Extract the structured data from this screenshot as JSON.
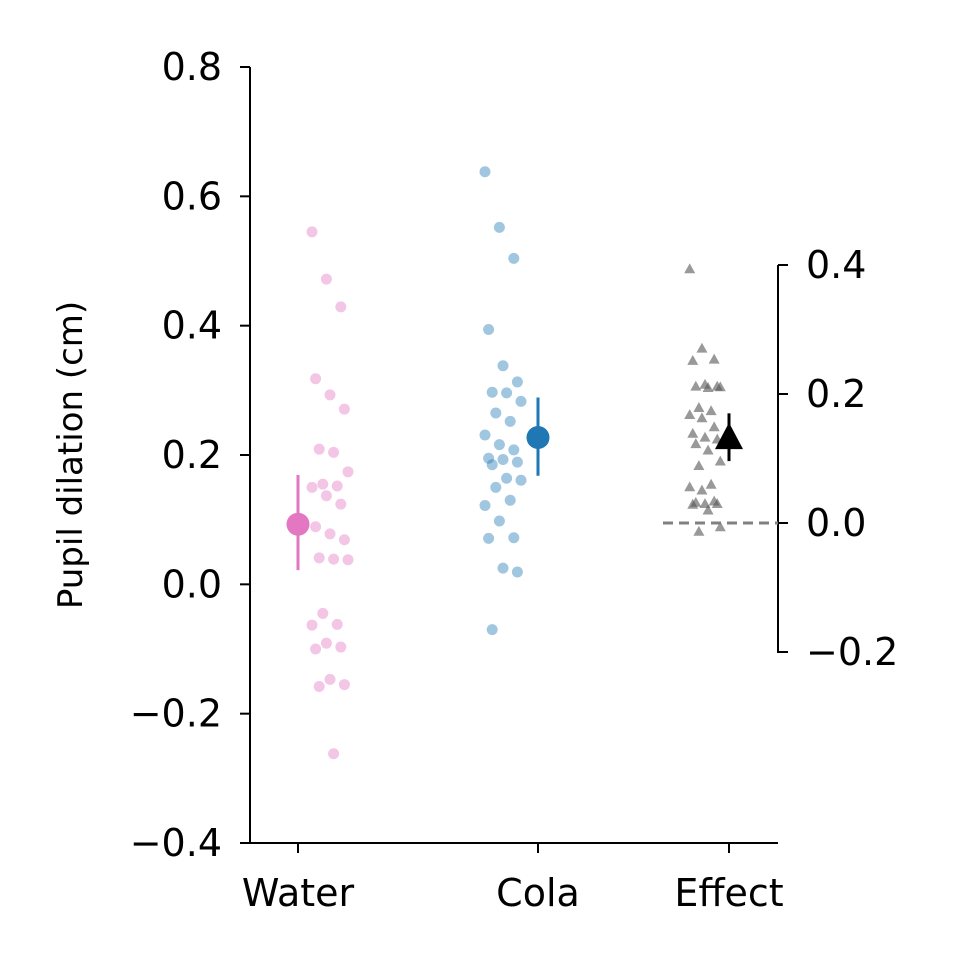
{
  "chart_data": {
    "type": "scatter",
    "ylabel": "Pupil dilation (cm)",
    "ylim": [
      -0.4,
      0.8
    ],
    "yticks": [
      -0.4,
      -0.2,
      0.0,
      0.2,
      0.4,
      0.6,
      0.8
    ],
    "ytick_labels": [
      "−0.4",
      "−0.2",
      "0.0",
      "0.2",
      "0.4",
      "0.6",
      "0.8"
    ],
    "categories": [
      "Water",
      "Cola",
      "Effect"
    ],
    "grid": false,
    "colors": {
      "water": "#e377c2",
      "cola": "#1f77b4",
      "effect": "#000000",
      "zero_line": "#808080"
    },
    "groups": [
      {
        "category": "Water",
        "mean": 0.093,
        "ci": [
          0.022,
          0.169
        ],
        "points": [
          0.545,
          0.472,
          0.429,
          0.318,
          0.293,
          0.271,
          0.209,
          0.204,
          0.174,
          0.155,
          0.152,
          0.15,
          0.137,
          0.124,
          0.089,
          0.078,
          0.069,
          0.041,
          0.039,
          0.038,
          -0.045,
          -0.062,
          -0.063,
          -0.091,
          -0.097,
          -0.1,
          -0.147,
          -0.155,
          -0.158,
          -0.262
        ]
      },
      {
        "category": "Cola",
        "mean": 0.227,
        "ci": [
          0.168,
          0.289
        ],
        "points": [
          0.638,
          0.552,
          0.504,
          0.394,
          0.338,
          0.313,
          0.297,
          0.296,
          0.283,
          0.265,
          0.252,
          0.231,
          0.216,
          0.208,
          0.195,
          0.193,
          0.189,
          0.185,
          0.164,
          0.161,
          0.15,
          0.13,
          0.122,
          0.098,
          0.072,
          0.071,
          0.025,
          0.019,
          -0.07
        ]
      }
    ],
    "effect": {
      "category": "Effect",
      "secondary_axis": {
        "ylim": [
          -0.2,
          0.4
        ],
        "yticks": [
          -0.2,
          0.0,
          0.2,
          0.4
        ],
        "ytick_labels": [
          "−0.2",
          "0.0",
          "0.2",
          "0.4"
        ]
      },
      "mean": 0.134,
      "ci": [
        0.096,
        0.17
      ],
      "points": [
        0.394,
        0.271,
        0.254,
        0.252,
        0.215,
        0.212,
        0.212,
        0.21,
        0.211,
        0.179,
        0.174,
        0.168,
        0.163,
        0.149,
        0.139,
        0.133,
        0.13,
        0.123,
        0.113,
        0.096,
        0.089,
        0.06,
        0.056,
        0.051,
        0.034,
        0.029,
        0.03,
        0.03,
        0.032,
        0.02,
        -0.006,
        -0.013
      ],
      "zero_line_style": "dashed"
    }
  }
}
